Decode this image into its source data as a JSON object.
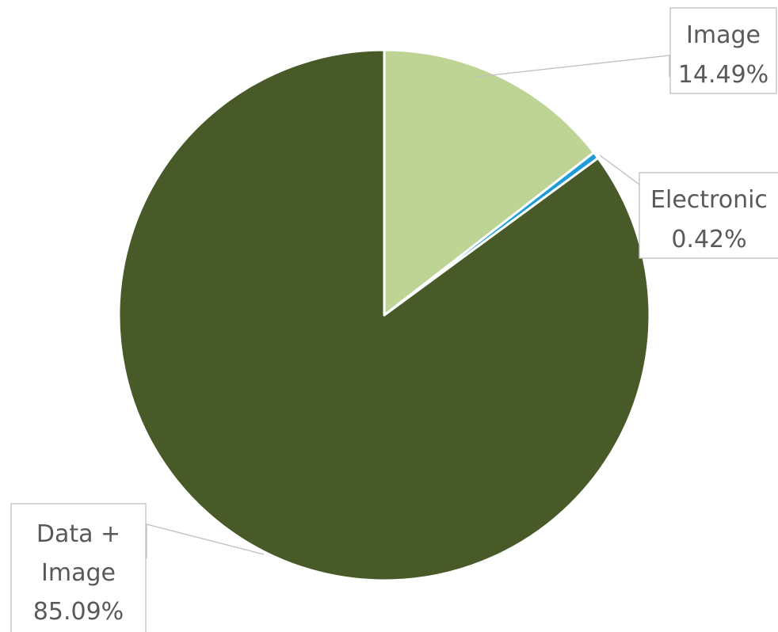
{
  "chart_data": {
    "type": "pie",
    "title": "",
    "start_angle_deg": 0,
    "direction": "clockwise",
    "slices": [
      {
        "name": "Image",
        "value": 14.49,
        "label": "14.49%",
        "color": "#bdd495"
      },
      {
        "name": "Electronic",
        "value": 0.42,
        "label": "0.42%",
        "color": "#1f9bd9"
      },
      {
        "name": "Data + Image",
        "value": 85.09,
        "label": "85.09%",
        "color": "#485a28"
      }
    ],
    "legend": "none",
    "data_labels": "outside-callouts"
  }
}
